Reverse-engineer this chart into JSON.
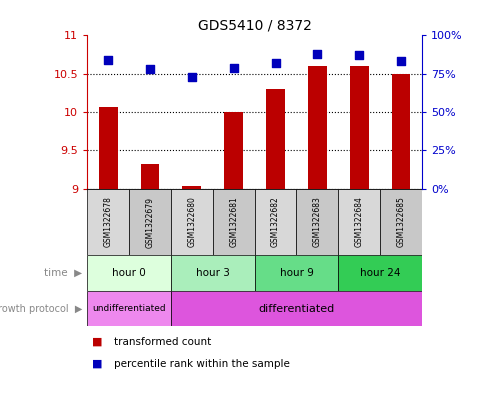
{
  "title": "GDS5410 / 8372",
  "samples": [
    "GSM1322678",
    "GSM1322679",
    "GSM1322680",
    "GSM1322681",
    "GSM1322682",
    "GSM1322683",
    "GSM1322684",
    "GSM1322685"
  ],
  "transformed_count": [
    10.07,
    9.32,
    9.04,
    10.0,
    10.3,
    10.6,
    10.6,
    10.5
  ],
  "percentile_rank": [
    84,
    78,
    73,
    79,
    82,
    88,
    87,
    83
  ],
  "ylim_left": [
    9,
    11
  ],
  "ylim_right": [
    0,
    100
  ],
  "yticks_left": [
    9,
    9.5,
    10,
    10.5,
    11
  ],
  "yticks_right": [
    0,
    25,
    50,
    75,
    100
  ],
  "yticklabels_right": [
    "0%",
    "25%",
    "50%",
    "75%",
    "100%"
  ],
  "bar_color": "#bb0000",
  "dot_color": "#0000bb",
  "time_groups": [
    {
      "label": "hour 0",
      "start": 0,
      "end": 2,
      "color": "#ddffdd"
    },
    {
      "label": "hour 3",
      "start": 2,
      "end": 4,
      "color": "#aaeebb"
    },
    {
      "label": "hour 9",
      "start": 4,
      "end": 6,
      "color": "#66dd88"
    },
    {
      "label": "hour 24",
      "start": 6,
      "end": 8,
      "color": "#33cc55"
    }
  ],
  "growth_protocol_groups": [
    {
      "label": "undifferentiated",
      "start": 0,
      "end": 2,
      "color": "#ee88ee"
    },
    {
      "label": "differentiated",
      "start": 2,
      "end": 8,
      "color": "#dd55dd"
    }
  ],
  "legend_items": [
    {
      "label": "transformed count",
      "color": "#bb0000"
    },
    {
      "label": "percentile rank within the sample",
      "color": "#0000bb"
    }
  ],
  "left_axis_color": "#cc0000",
  "right_axis_color": "#0000cc",
  "bar_width": 0.45,
  "dot_size": 40,
  "baseline": 9.0,
  "sample_box_color_even": "#d8d8d8",
  "sample_box_color_odd": "#c8c8c8"
}
